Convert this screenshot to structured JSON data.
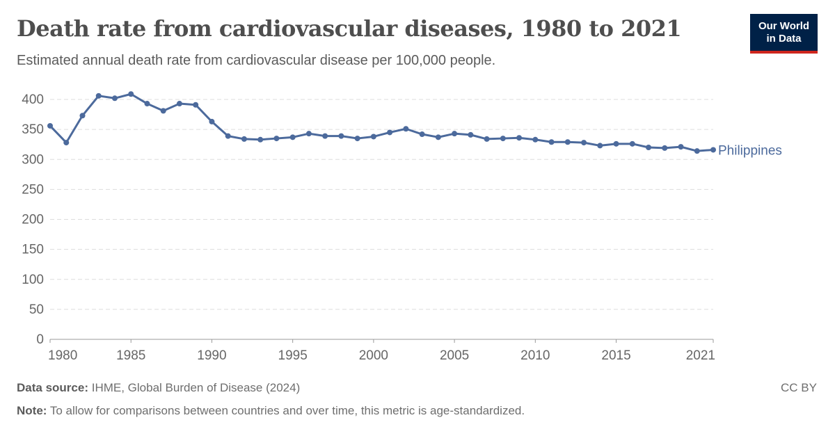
{
  "header": {
    "title": "Death rate from cardiovascular diseases, 1980 to 2021",
    "subtitle": "Estimated annual death rate from cardiovascular disease per 100,000 people.",
    "logo_line1": "Our World",
    "logo_line2": "in Data"
  },
  "footer": {
    "source_label": "Data source:",
    "source": "IHME, Global Burden of Disease (2024)",
    "note_label": "Note:",
    "note": "To allow for comparisons between countries and over time, this metric is age-standardized.",
    "license": "CC BY"
  },
  "colors": {
    "series": "#4c6a9c",
    "grid": "#dddddd"
  },
  "chart_data": {
    "type": "line",
    "title": "Death rate from cardiovascular diseases, 1980 to 2021",
    "xlabel": "",
    "ylabel": "",
    "xlim": [
      1980,
      2021
    ],
    "ylim": [
      0,
      400
    ],
    "grid": true,
    "xticks": [
      "1980",
      "1985",
      "1990",
      "1995",
      "2000",
      "2005",
      "2010",
      "2015",
      "2021"
    ],
    "yticks": [
      "0",
      "50",
      "100",
      "150",
      "200",
      "250",
      "300",
      "350",
      "400"
    ],
    "legend": "line-end label",
    "x": [
      1980,
      1981,
      1982,
      1983,
      1984,
      1985,
      1986,
      1987,
      1988,
      1989,
      1990,
      1991,
      1992,
      1993,
      1994,
      1995,
      1996,
      1997,
      1998,
      1999,
      2000,
      2001,
      2002,
      2003,
      2004,
      2005,
      2006,
      2007,
      2008,
      2009,
      2010,
      2011,
      2012,
      2013,
      2014,
      2015,
      2016,
      2017,
      2018,
      2019,
      2020,
      2021
    ],
    "series": [
      {
        "name": "Philippines",
        "values": [
          356,
          328,
          373,
          406,
          402,
          409,
          393,
          381,
          393,
          391,
          363,
          339,
          334,
          333,
          335,
          337,
          343,
          339,
          339,
          335,
          338,
          345,
          351,
          342,
          337,
          343,
          341,
          334,
          335,
          336,
          333,
          329,
          329,
          328,
          323,
          326,
          326,
          320,
          319,
          321,
          314,
          316
        ]
      }
    ]
  }
}
